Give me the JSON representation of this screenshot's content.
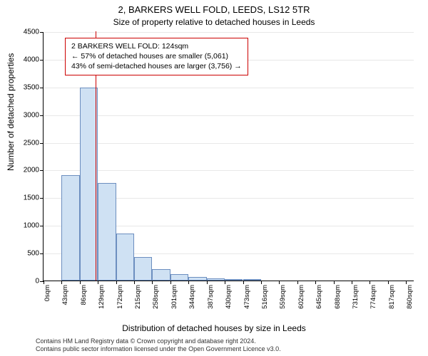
{
  "title_line1": "2, BARKERS WELL FOLD, LEEDS, LS12 5TR",
  "title_line2": "Size of property relative to detached houses in Leeds",
  "ylabel": "Number of detached properties",
  "xlabel": "Distribution of detached houses by size in Leeds",
  "attribution_line1": "Contains HM Land Registry data © Crown copyright and database right 2024.",
  "attribution_line2": "Contains public sector information licensed under the Open Government Licence v3.0.",
  "chart": {
    "type": "histogram",
    "ylim": [
      0,
      4500
    ],
    "ytick_step": 500,
    "ytick_labels": [
      "0",
      "500",
      "1000",
      "1500",
      "2000",
      "2500",
      "3000",
      "3500",
      "4000",
      "4500"
    ],
    "xlim_sqm": [
      0,
      880
    ],
    "xtick_step_sqm": 43,
    "xtick_labels": [
      "0sqm",
      "43sqm",
      "86sqm",
      "129sqm",
      "172sqm",
      "215sqm",
      "258sqm",
      "301sqm",
      "344sqm",
      "387sqm",
      "430sqm",
      "473sqm",
      "516sqm",
      "559sqm",
      "602sqm",
      "645sqm",
      "688sqm",
      "731sqm",
      "774sqm",
      "817sqm",
      "860sqm"
    ],
    "bar_values": [
      0,
      1900,
      3480,
      1760,
      850,
      420,
      200,
      120,
      70,
      40,
      30,
      20,
      0,
      0,
      0,
      0,
      0,
      0,
      0,
      0
    ],
    "bar_fill": "#cfe1f3",
    "bar_stroke": "#6c8ebf",
    "bar_stroke_width": 1,
    "grid_color": "#e8e8e8",
    "background": "#ffffff",
    "marker_value_sqm": 124,
    "marker_color": "#cc0000",
    "marker_width": 1.5,
    "annotation_border": "#cc0000",
    "annotation_lines": [
      "2 BARKERS WELL FOLD: 124sqm",
      "← 57% of detached houses are smaller (5,061)",
      "43% of semi-detached houses are larger (3,756) →"
    ]
  }
}
